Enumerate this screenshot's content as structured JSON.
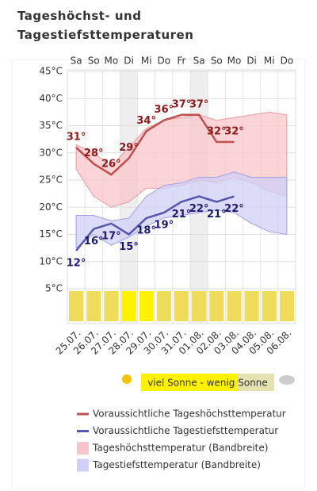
{
  "chart_data": {
    "type": "line",
    "title": "Tageshöchst- und Tagestiefsttemperaturen",
    "weekdays": [
      "Sa",
      "So",
      "Mo",
      "Di",
      "Mi",
      "Do",
      "Fr",
      "Sa",
      "So",
      "Mo",
      "Di",
      "Mi",
      "Do"
    ],
    "categories": [
      "25.07.",
      "26.07.",
      "27.07.",
      "28.07.",
      "29.07.",
      "30.07.",
      "31.07.",
      "01.08.",
      "02.08.",
      "03.08.",
      "04.08.",
      "05.08.",
      "06.08."
    ],
    "ylim": [
      5,
      45
    ],
    "yticks": [
      {
        "value": 5,
        "label": "5°C"
      },
      {
        "value": 10,
        "label": "10°C"
      },
      {
        "value": 15,
        "label": "15°C"
      },
      {
        "value": 20,
        "label": "20°C"
      },
      {
        "value": 25,
        "label": "25°C"
      },
      {
        "value": 30,
        "label": "30°C"
      },
      {
        "value": 35,
        "label": "35°C"
      },
      {
        "value": 40,
        "label": "40°C"
      },
      {
        "value": 45,
        "label": "45°C"
      }
    ],
    "grid": true,
    "series": [
      {
        "name": "Voraussichtliche Tageshöchsttemperatur",
        "color": "#c0504d",
        "label_color": "#8b1a1a",
        "values": [
          31,
          28,
          26,
          29,
          34,
          36,
          37,
          37,
          32,
          32,
          null,
          null,
          null
        ],
        "value_labels": [
          "31°",
          "28°",
          "26°",
          "29°",
          "34°",
          "36°",
          "37°",
          "37°",
          "32°",
          "32°",
          null,
          null,
          null
        ]
      },
      {
        "name": "Voraussichtliche Tagestiefsttemperatur",
        "color": "#5656b0",
        "label_color": "#1a1a6e",
        "values": [
          12,
          16,
          17,
          15,
          18,
          19,
          21,
          22,
          21,
          22,
          null,
          null,
          null
        ],
        "value_labels": [
          "12°",
          "16°",
          "17°",
          "15°",
          "18°",
          "19°",
          "21°",
          "22°",
          "21°",
          "22°",
          null,
          null,
          null
        ]
      }
    ],
    "bands": [
      {
        "name": "Tageshöchsttemperatur (Bandbreite)",
        "color": "#f8c6c8",
        "edge": "#e89aa0",
        "upper": [
          31.5,
          30,
          27.5,
          31,
          34.5,
          36,
          36.5,
          37,
          36,
          36.5,
          37,
          37.5,
          37
        ],
        "lower": [
          27,
          22,
          20,
          21,
          23.5,
          23.5,
          24,
          25,
          24.5,
          25.5,
          24.5,
          23,
          22
        ]
      },
      {
        "name": "Tagestiefsttemperatur (Bandbreite)",
        "color": "#cfd0f6",
        "edge": "#9fa0e6",
        "upper": [
          18.5,
          18.5,
          17.5,
          18,
          22,
          24,
          24.5,
          25.5,
          25.5,
          26.5,
          25.5,
          25.5,
          25.5
        ],
        "lower": [
          12.5,
          15,
          13,
          14.5,
          16.5,
          18,
          18.5,
          19,
          19.5,
          19,
          17,
          15.5,
          15
        ]
      }
    ],
    "sunshine_colors": [
      "#efdc5a",
      "#efdc5a",
      "#efdc5a",
      "#fff200",
      "#fff200",
      "#efdc5a",
      "#efdc5a",
      "#efdc5a",
      "#efdc5a",
      "#efdc5a",
      "#efdc5a",
      "#efdc5a",
      "#efdc5a"
    ],
    "sunshine_legend": "viel Sonne - wenig Sonne"
  }
}
